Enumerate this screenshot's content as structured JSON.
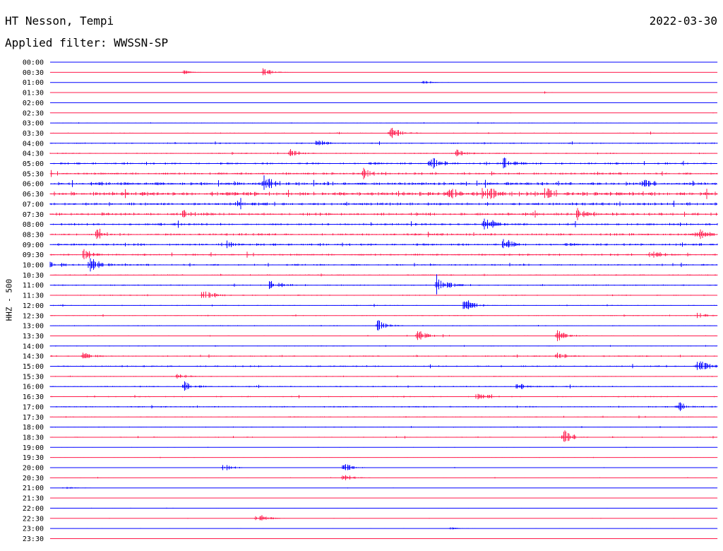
{
  "header": {
    "station": "HT Nesson, Tempi",
    "filter": "Applied filter: WWSSN-SP",
    "date": "2022-03-30"
  },
  "colors": {
    "trace_a": "#0000ff",
    "trace_b": "#ff1a4b"
  },
  "chart_data": {
    "type": "line",
    "title": "HT Nesson, Tempi",
    "subtitle": "Applied filter: WWSSN-SP",
    "ylabel": "HHZ - 500",
    "xlabel": "",
    "rows": [
      "00:00",
      "00:30",
      "01:00",
      "01:30",
      "02:00",
      "02:30",
      "03:00",
      "03:30",
      "04:00",
      "04:30",
      "05:00",
      "05:30",
      "06:00",
      "06:30",
      "07:00",
      "07:30",
      "08:00",
      "08:30",
      "09:00",
      "09:30",
      "10:00",
      "10:30",
      "11:00",
      "11:30",
      "12:00",
      "12:30",
      "13:00",
      "13:30",
      "14:00",
      "14:30",
      "15:00",
      "15:30",
      "16:00",
      "16:30",
      "17:00",
      "17:30",
      "18:00",
      "18:30",
      "19:00",
      "19:30",
      "20:00",
      "20:30",
      "21:00",
      "21:30",
      "22:00",
      "22:30",
      "23:00",
      "23:30"
    ],
    "row_colors": [
      "blue",
      "red"
    ],
    "noise_level": [
      0.1,
      0.15,
      0.1,
      0.1,
      0.1,
      0.15,
      0.5,
      0.6,
      0.9,
      0.8,
      1.4,
      1.5,
      2.2,
      2.6,
      1.8,
      1.8,
      1.5,
      1.5,
      1.6,
      1.3,
      1.2,
      0.8,
      0.8,
      0.8,
      0.6,
      0.6,
      0.6,
      0.5,
      0.5,
      0.9,
      1.0,
      0.6,
      0.8,
      0.8,
      0.9,
      0.6,
      0.6,
      0.7,
      0.3,
      0.3,
      0.3,
      0.3,
      0.2,
      0.15,
      0.2,
      0.2,
      0.15,
      0.15
    ],
    "events": [
      {
        "row": 1,
        "x": 0.32,
        "amp": 8
      },
      {
        "row": 1,
        "x": 0.2,
        "amp": 3
      },
      {
        "row": 2,
        "x": 0.56,
        "amp": 3
      },
      {
        "row": 3,
        "x": 0.74,
        "amp": 2
      },
      {
        "row": 7,
        "x": 0.51,
        "amp": 10
      },
      {
        "row": 8,
        "x": 0.4,
        "amp": 5
      },
      {
        "row": 9,
        "x": 0.36,
        "amp": 6
      },
      {
        "row": 9,
        "x": 0.61,
        "amp": 6
      },
      {
        "row": 10,
        "x": 0.57,
        "amp": 11
      },
      {
        "row": 10,
        "x": 0.68,
        "amp": 8
      },
      {
        "row": 11,
        "x": 0.47,
        "amp": 7
      },
      {
        "row": 12,
        "x": 0.32,
        "amp": 12
      },
      {
        "row": 12,
        "x": 0.89,
        "amp": 5
      },
      {
        "row": 13,
        "x": 0.6,
        "amp": 10
      },
      {
        "row": 13,
        "x": 0.65,
        "amp": 14
      },
      {
        "row": 13,
        "x": 0.74,
        "amp": 12
      },
      {
        "row": 14,
        "x": 0.28,
        "amp": 5
      },
      {
        "row": 15,
        "x": 0.2,
        "amp": 6
      },
      {
        "row": 15,
        "x": 0.79,
        "amp": 9
      },
      {
        "row": 16,
        "x": 0.65,
        "amp": 14
      },
      {
        "row": 17,
        "x": 0.07,
        "amp": 6
      },
      {
        "row": 17,
        "x": 0.97,
        "amp": 8
      },
      {
        "row": 18,
        "x": 0.26,
        "amp": 6
      },
      {
        "row": 18,
        "x": 0.68,
        "amp": 8
      },
      {
        "row": 19,
        "x": 0.05,
        "amp": 9
      },
      {
        "row": 19,
        "x": 0.9,
        "amp": 6
      },
      {
        "row": 20,
        "x": 0.06,
        "amp": 12
      },
      {
        "row": 20,
        "x": 0.0,
        "amp": 8
      },
      {
        "row": 22,
        "x": 0.33,
        "amp": 10
      },
      {
        "row": 22,
        "x": 0.58,
        "amp": 16
      },
      {
        "row": 23,
        "x": 0.23,
        "amp": 10
      },
      {
        "row": 24,
        "x": 0.62,
        "amp": 12
      },
      {
        "row": 25,
        "x": 0.97,
        "amp": 5
      },
      {
        "row": 26,
        "x": 0.49,
        "amp": 10
      },
      {
        "row": 27,
        "x": 0.55,
        "amp": 11
      },
      {
        "row": 27,
        "x": 0.76,
        "amp": 10
      },
      {
        "row": 29,
        "x": 0.05,
        "amp": 6
      },
      {
        "row": 29,
        "x": 0.76,
        "amp": 6
      },
      {
        "row": 30,
        "x": 0.97,
        "amp": 12
      },
      {
        "row": 31,
        "x": 0.19,
        "amp": 5
      },
      {
        "row": 32,
        "x": 0.2,
        "amp": 9
      },
      {
        "row": 32,
        "x": 0.7,
        "amp": 6
      },
      {
        "row": 33,
        "x": 0.64,
        "amp": 7
      },
      {
        "row": 34,
        "x": 0.94,
        "amp": 8
      },
      {
        "row": 37,
        "x": 0.77,
        "amp": 11
      },
      {
        "row": 40,
        "x": 0.44,
        "amp": 7
      },
      {
        "row": 40,
        "x": 0.26,
        "amp": 5
      },
      {
        "row": 41,
        "x": 0.44,
        "amp": 6
      },
      {
        "row": 42,
        "x": 0.02,
        "amp": 3
      },
      {
        "row": 45,
        "x": 0.31,
        "amp": 8
      },
      {
        "row": 46,
        "x": 0.6,
        "amp": 2
      }
    ]
  }
}
